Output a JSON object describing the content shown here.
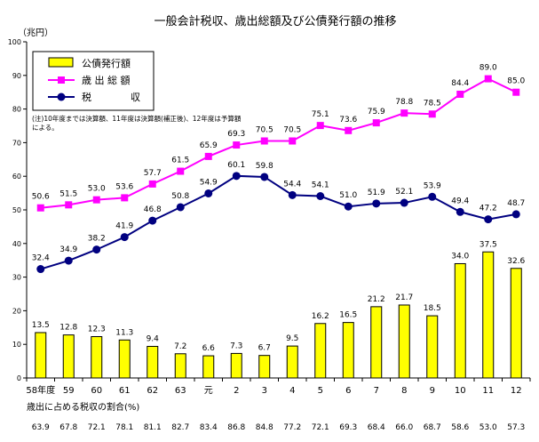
{
  "chart_data": {
    "type": "bar+line",
    "title": "一般会計税収、歳出総額及び公債発行額の推移",
    "ylabel": "（兆円）",
    "ylim": [
      0,
      100
    ],
    "yticks": [
      0,
      10,
      20,
      30,
      40,
      50,
      60,
      70,
      80,
      90,
      100
    ],
    "grid": false,
    "legend_position": "top-left",
    "categories": [
      "58年度",
      "59",
      "60",
      "61",
      "62",
      "63",
      "元",
      "2",
      "3",
      "4",
      "5",
      "6",
      "7",
      "8",
      "9",
      "10",
      "11",
      "12"
    ],
    "series": [
      {
        "name": "公債発行額",
        "kind": "bar",
        "color": "#ffff00",
        "values": [
          13.5,
          12.8,
          12.3,
          11.3,
          9.4,
          7.2,
          6.6,
          7.3,
          6.7,
          9.5,
          16.2,
          16.5,
          21.2,
          21.7,
          18.5,
          34.0,
          37.5,
          32.6
        ],
        "labels": [
          "13.5",
          "12.8",
          "12.3",
          "11.3",
          "9.4",
          "7.2",
          "6.6",
          "7.3",
          "6.7",
          "9.5",
          "16.2",
          "16.5",
          "21.2",
          "21.7",
          "18.5",
          "34.0",
          "37.5",
          "32.6"
        ]
      },
      {
        "name": "歳 出 総 額",
        "kind": "line",
        "marker": "square",
        "color": "#ff00ff",
        "values": [
          50.6,
          51.5,
          53.0,
          53.6,
          57.7,
          61.5,
          65.9,
          69.3,
          70.5,
          70.5,
          75.1,
          73.6,
          75.9,
          78.8,
          78.5,
          84.4,
          89.0,
          85.0
        ],
        "labels": [
          "50.6",
          "51.5",
          "53.0",
          "53.6",
          "57.7",
          "61.5",
          "65.9",
          "69.3",
          "70.5",
          "70.5",
          "75.1",
          "73.6",
          "75.9",
          "78.8",
          "78.5",
          "84.4",
          "89.0",
          "85.0"
        ]
      },
      {
        "name": "税　　　　収",
        "kind": "line",
        "marker": "circle",
        "color": "#000080",
        "values": [
          32.4,
          34.9,
          38.2,
          41.9,
          46.8,
          50.8,
          54.9,
          60.1,
          59.8,
          54.4,
          54.1,
          51.0,
          51.9,
          52.1,
          53.9,
          49.4,
          47.2,
          48.7
        ],
        "labels": [
          "32.4",
          "34.9",
          "38.2",
          "41.9",
          "46.8",
          "50.8",
          "54.9",
          "60.1",
          "59.8",
          "54.4",
          "54.1",
          "51.0",
          "51.9",
          "52.1",
          "53.9",
          "49.4",
          "47.2",
          "48.7"
        ]
      }
    ],
    "note": "(注)10年度までは決算額、11年度は決算額(補正後)、12年度は予算額による。",
    "share_label": "歳出に占める税収の割合(%)",
    "share_values": [
      "63.9",
      "67.8",
      "72.1",
      "78.1",
      "81.1",
      "82.7",
      "83.4",
      "86.8",
      "84.8",
      "77.2",
      "72.1",
      "69.3",
      "68.4",
      "66.0",
      "68.7",
      "58.6",
      "53.0",
      "57.3"
    ]
  }
}
